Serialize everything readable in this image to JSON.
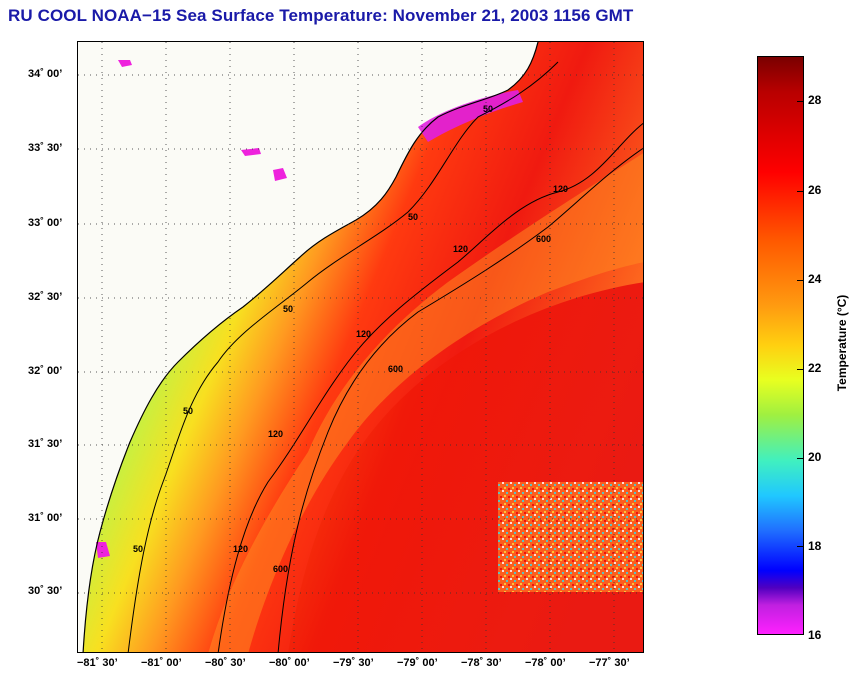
{
  "title": "RU COOL  NOAA−15  Sea Surface Temperature:  November 21, 2003 1156 GMT",
  "y_axis_labels": [
    "34˚ 00’",
    "33˚ 30’",
    "33˚ 00’",
    "32˚ 30’",
    "32˚ 00’",
    "31˚ 30’",
    "31˚ 00’",
    "30˚ 30’"
  ],
  "x_axis_labels": [
    "−81˚ 30’",
    "−81˚ 00’",
    "−80˚ 30’",
    "−80˚ 00’",
    "−79˚ 30’",
    "−79˚ 00’",
    "−78˚ 30’",
    "−78˚ 00’",
    "−77˚ 30’"
  ],
  "colorbar": {
    "label": "Temperature (°C)",
    "ticks": [
      "28",
      "26",
      "24",
      "22",
      "20",
      "18",
      "16"
    ],
    "range": [
      16,
      29
    ]
  },
  "contour_labels": [
    "50",
    "50",
    "50",
    "50",
    "50",
    "120",
    "120",
    "120",
    "120",
    "120",
    "600",
    "600",
    "600"
  ],
  "colors": {
    "title": "#1a1aa8",
    "land": "#fbfbf6",
    "cloud_mask": "#ee22dd",
    "contour": "#000000"
  }
}
